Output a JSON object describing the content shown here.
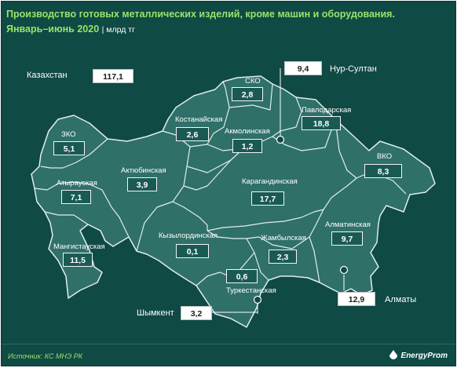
{
  "title": {
    "line1": "Производство готовых металлических изделий, кроме машин и оборудования.",
    "line2": "Январь–июнь 2020",
    "unit": "| млрд тг"
  },
  "country": {
    "label": "Казахстан",
    "value": "117,1"
  },
  "regions": [
    {
      "id": "zko",
      "label": "ЗКО",
      "value": "5,1"
    },
    {
      "id": "atyrau",
      "label": "Атырауская",
      "value": "7,1"
    },
    {
      "id": "mangistau",
      "label": "Мангистауская",
      "value": "11,5"
    },
    {
      "id": "aktobe",
      "label": "Актюбинская",
      "value": "3,9"
    },
    {
      "id": "kostanay",
      "label": "Костанайская",
      "value": "2,6"
    },
    {
      "id": "sko",
      "label": "СКО",
      "value": "2,8"
    },
    {
      "id": "akmola",
      "label": "Акмолинская",
      "value": "1,2"
    },
    {
      "id": "pavlodar",
      "label": "Павлодарская",
      "value": "18,8"
    },
    {
      "id": "vko",
      "label": "ВКО",
      "value": "8,3"
    },
    {
      "id": "karaganda",
      "label": "Карагандинская",
      "value": "17,7"
    },
    {
      "id": "kyzylorda",
      "label": "Кызылординская",
      "value": "0,1"
    },
    {
      "id": "zhambyl",
      "label": "Жамбылская",
      "value": "2,3"
    },
    {
      "id": "almaty_obl",
      "label": "Алматинская",
      "value": "9,7"
    },
    {
      "id": "turkestan",
      "label": "Туркестанская",
      "value": "0,6"
    }
  ],
  "cities": [
    {
      "id": "nursultan",
      "label": "Нур-Султан",
      "value": "9,4"
    },
    {
      "id": "almaty",
      "label": "Алматы",
      "value": "12,9"
    },
    {
      "id": "shymkent",
      "label": "Шымкент",
      "value": "3,2"
    }
  ],
  "source": "Источник: КС МНЭ РК",
  "brand": "EnergyProm",
  "colors": {
    "background": "#0f4a45",
    "map_fill": "#2f7069",
    "title": "#9be36a",
    "border": "#ffffff"
  }
}
